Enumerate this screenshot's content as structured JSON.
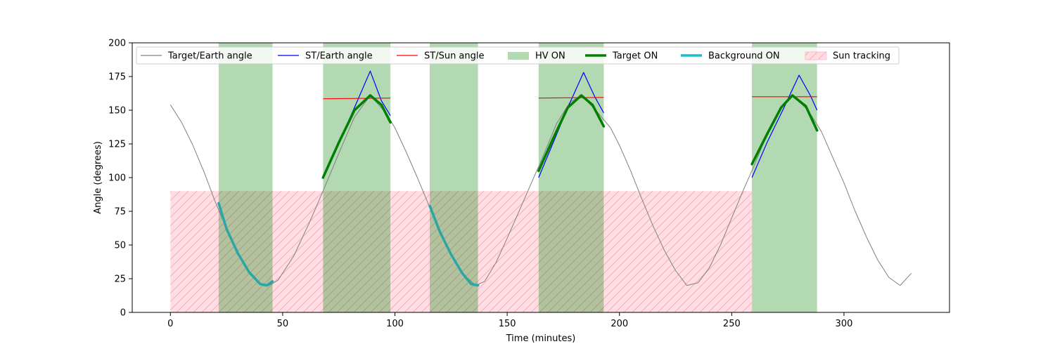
{
  "chart_data": {
    "type": "line",
    "title": "",
    "xlabel": "Time (minutes)",
    "ylabel": "Angle (degrees)",
    "xlim": [
      -17,
      347
    ],
    "ylim": [
      0,
      200
    ],
    "xticks": [
      0,
      50,
      100,
      150,
      200,
      250,
      300
    ],
    "yticks": [
      0,
      25,
      50,
      75,
      100,
      125,
      150,
      175,
      200
    ],
    "grid": false,
    "legend_placement": "top",
    "legend": [
      {
        "label": "Target/Earth angle",
        "kind": "line",
        "color": "#808080"
      },
      {
        "label": "ST/Earth angle",
        "kind": "line",
        "color": "#0000ff"
      },
      {
        "label": "ST/Sun angle",
        "kind": "line",
        "color": "#ff0000"
      },
      {
        "label": "HV ON",
        "kind": "patch",
        "color": "#b3d9b3"
      },
      {
        "label": "Target ON",
        "kind": "thickline",
        "color": "#008000"
      },
      {
        "label": "Background ON",
        "kind": "thickline",
        "color": "#17becf"
      },
      {
        "label": "Sun tracking",
        "kind": "hatch",
        "color": "#ffdde3"
      }
    ],
    "colors": {
      "target_earth": "#808080",
      "st_earth": "#0000ff",
      "st_sun": "#ff0000",
      "hv_on": "#b3d9b3",
      "target_on": "#008000",
      "background_on": "#2ca6a4",
      "sun_tracking": "#ffdde3",
      "sun_tracking_hatch": "#ff9fb0"
    },
    "series": [
      {
        "name": "Target/Earth angle",
        "x": [
          0,
          5,
          10,
          15,
          20,
          25,
          30,
          35,
          40,
          44,
          48,
          55,
          62,
          68,
          75,
          82,
          89,
          96,
          100,
          105,
          110,
          115,
          120,
          125,
          130,
          136,
          140,
          145,
          150,
          155,
          160,
          165,
          172,
          178,
          183,
          190,
          196,
          200,
          205,
          210,
          215,
          220,
          225,
          230,
          235,
          240,
          245,
          250,
          255,
          260,
          266,
          272,
          277,
          284,
          290,
          295,
          300,
          305,
          310,
          315,
          320,
          325,
          330
        ],
        "y": [
          154,
          141,
          124,
          104,
          82,
          62,
          44,
          30,
          21,
          20,
          24,
          42,
          67,
          90,
          118,
          145,
          161,
          148,
          137,
          119,
          100,
          80,
          60,
          43,
          29,
          20,
          23,
          37,
          55,
          74,
          93,
          112,
          140,
          156,
          161,
          149,
          137,
          124,
          105,
          84,
          64,
          46,
          31,
          20,
          22,
          33,
          50,
          70,
          90,
          109,
          133,
          152,
          161,
          150,
          134,
          115,
          96,
          75,
          56,
          39,
          26,
          20,
          29
        ]
      },
      {
        "name": "ST/Earth angle",
        "segments": [
          {
            "x": [
              68,
              75,
              82,
              89,
              94,
              98
            ],
            "y": [
              100,
              126,
              152,
              179,
              157,
              146
            ]
          },
          {
            "x": [
              164,
              171,
              177,
              184,
              189,
              193
            ],
            "y": [
              100,
              128,
              152,
              178,
              160,
              148
            ]
          },
          {
            "x": [
              259,
              266,
              273,
              280,
              285,
              288
            ],
            "y": [
              100,
              127,
              151,
              176,
              161,
              150
            ]
          }
        ]
      },
      {
        "name": "ST/Sun angle",
        "segments": [
          {
            "x": [
              68,
              98
            ],
            "y": [
              158.5,
              159
            ]
          },
          {
            "x": [
              164,
              193
            ],
            "y": [
              159,
              159.5
            ]
          },
          {
            "x": [
              259,
              288
            ],
            "y": [
              160,
              160
            ]
          }
        ]
      }
    ],
    "hv_on_intervals": [
      [
        21.5,
        45.5
      ],
      [
        68,
        98
      ],
      [
        115.5,
        137
      ],
      [
        164,
        193
      ],
      [
        259,
        288
      ]
    ],
    "sun_tracking_intervals": [
      [
        0,
        259
      ]
    ],
    "sun_tracking_level": 90,
    "target_on_segments": [
      {
        "x": [
          68,
          75,
          82,
          89,
          94,
          98
        ],
        "y": [
          100,
          126,
          150,
          161,
          154,
          141
        ]
      },
      {
        "x": [
          164,
          171,
          177,
          183,
          188,
          193
        ],
        "y": [
          105,
          131,
          152,
          161,
          154,
          138
        ]
      },
      {
        "x": [
          259,
          266,
          272,
          277,
          283,
          288
        ],
        "y": [
          110,
          133,
          152,
          161,
          153,
          135
        ]
      }
    ],
    "background_on_segments": [
      {
        "x": [
          21.5,
          25,
          30,
          35,
          40,
          43,
          45.5
        ],
        "y": [
          81,
          62,
          44,
          30,
          21,
          20,
          23
        ]
      },
      {
        "x": [
          115.5,
          120,
          125,
          130,
          134,
          137
        ],
        "y": [
          79,
          60,
          43,
          29,
          21,
          20
        ]
      }
    ]
  }
}
